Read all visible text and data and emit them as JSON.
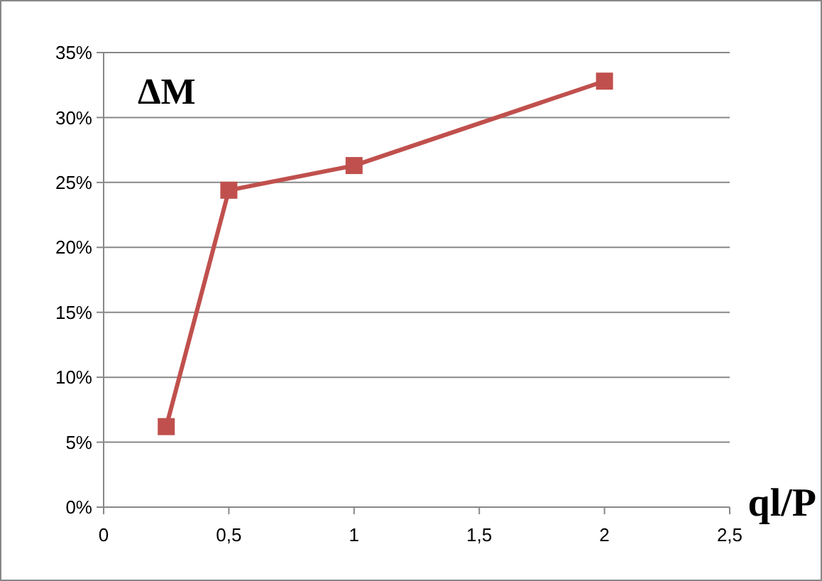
{
  "chart_data": {
    "type": "line",
    "xlabel": "ql/P",
    "ylabel": "ΔM",
    "x": [
      0.25,
      0.5,
      1,
      2
    ],
    "series": [
      {
        "color": "#c0504d",
        "values": [
          6.2,
          24.4,
          26.3,
          32.8
        ]
      }
    ],
    "xlim": [
      0,
      2.5
    ],
    "xticks": [
      0,
      {
        "value": 0.5,
        "label": "0,5"
      },
      1,
      {
        "value": 1.5,
        "label": "1,5"
      },
      2,
      {
        "value": 2.5,
        "label": "2,5"
      }
    ],
    "ylim": [
      0,
      35
    ],
    "yticks": [
      {
        "value": 0,
        "label": "0%"
      },
      {
        "value": 5,
        "label": "5%"
      },
      {
        "value": 10,
        "label": "10%"
      },
      {
        "value": 15,
        "label": "15%"
      },
      {
        "value": 20,
        "label": "20%"
      },
      {
        "value": 25,
        "label": "25%"
      },
      {
        "value": 30,
        "label": "30%"
      },
      {
        "value": 35,
        "label": "35%"
      }
    ],
    "grid": "y",
    "marker": "square",
    "line_style": "solid"
  }
}
